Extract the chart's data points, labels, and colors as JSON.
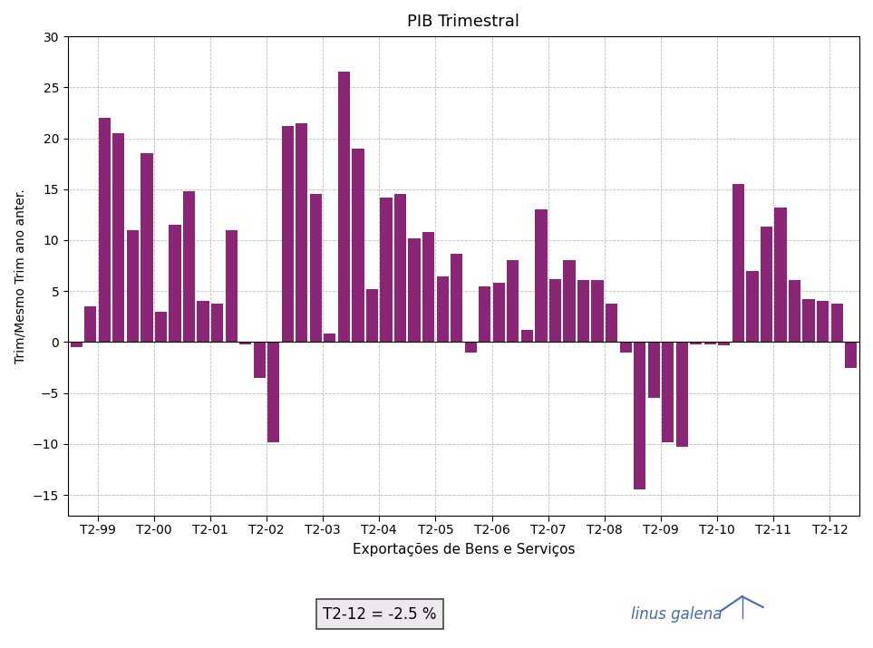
{
  "title": "PIB Trimestral",
  "xlabel": "Exportações de Bens e Serviços",
  "ylabel": "Trim/Mesmo Trim ano anter.",
  "bar_color": "#8B2575",
  "ylim": [
    -17,
    30
  ],
  "yticks": [
    -15,
    -10,
    -5,
    0,
    5,
    10,
    15,
    20,
    25,
    30
  ],
  "annotation": "T2-12 = -2.5 %",
  "background_color": "#ffffff",
  "values": [
    -0.5,
    3.5,
    22.0,
    20.5,
    11.0,
    18.5,
    3.0,
    11.5,
    14.8,
    4.0,
    3.8,
    11.0,
    -0.2,
    -3.5,
    -9.8,
    21.2,
    21.5,
    14.5,
    0.8,
    26.5,
    19.0,
    5.2,
    14.2,
    14.5,
    10.2,
    10.8,
    6.4,
    8.7,
    -1.0,
    5.5,
    5.8,
    8.0,
    1.2,
    13.0,
    6.2,
    8.0,
    6.1,
    6.1,
    3.8,
    -1.0,
    -14.5,
    -5.5,
    -9.8,
    -10.3,
    -0.2,
    -0.2,
    -0.3,
    15.5,
    7.0,
    11.3,
    13.2,
    6.1,
    4.2,
    4.0,
    3.8,
    -2.5
  ],
  "x_labels": [
    "T2-99",
    "T2-00",
    "T2-01",
    "T2-02",
    "T2-03",
    "T2-04",
    "T2-05",
    "T2-06",
    "T2-07",
    "T2-08",
    "T2-09",
    "T2-10",
    "T2-11",
    "T2-12"
  ],
  "logo_text": "linus galena",
  "logo_color": "#4466BB",
  "anno_bg": "#ede8ee",
  "grid_color": "#bbbbbb",
  "title_fontsize": 13,
  "xlabel_fontsize": 11,
  "ylabel_fontsize": 10,
  "tick_fontsize": 10
}
